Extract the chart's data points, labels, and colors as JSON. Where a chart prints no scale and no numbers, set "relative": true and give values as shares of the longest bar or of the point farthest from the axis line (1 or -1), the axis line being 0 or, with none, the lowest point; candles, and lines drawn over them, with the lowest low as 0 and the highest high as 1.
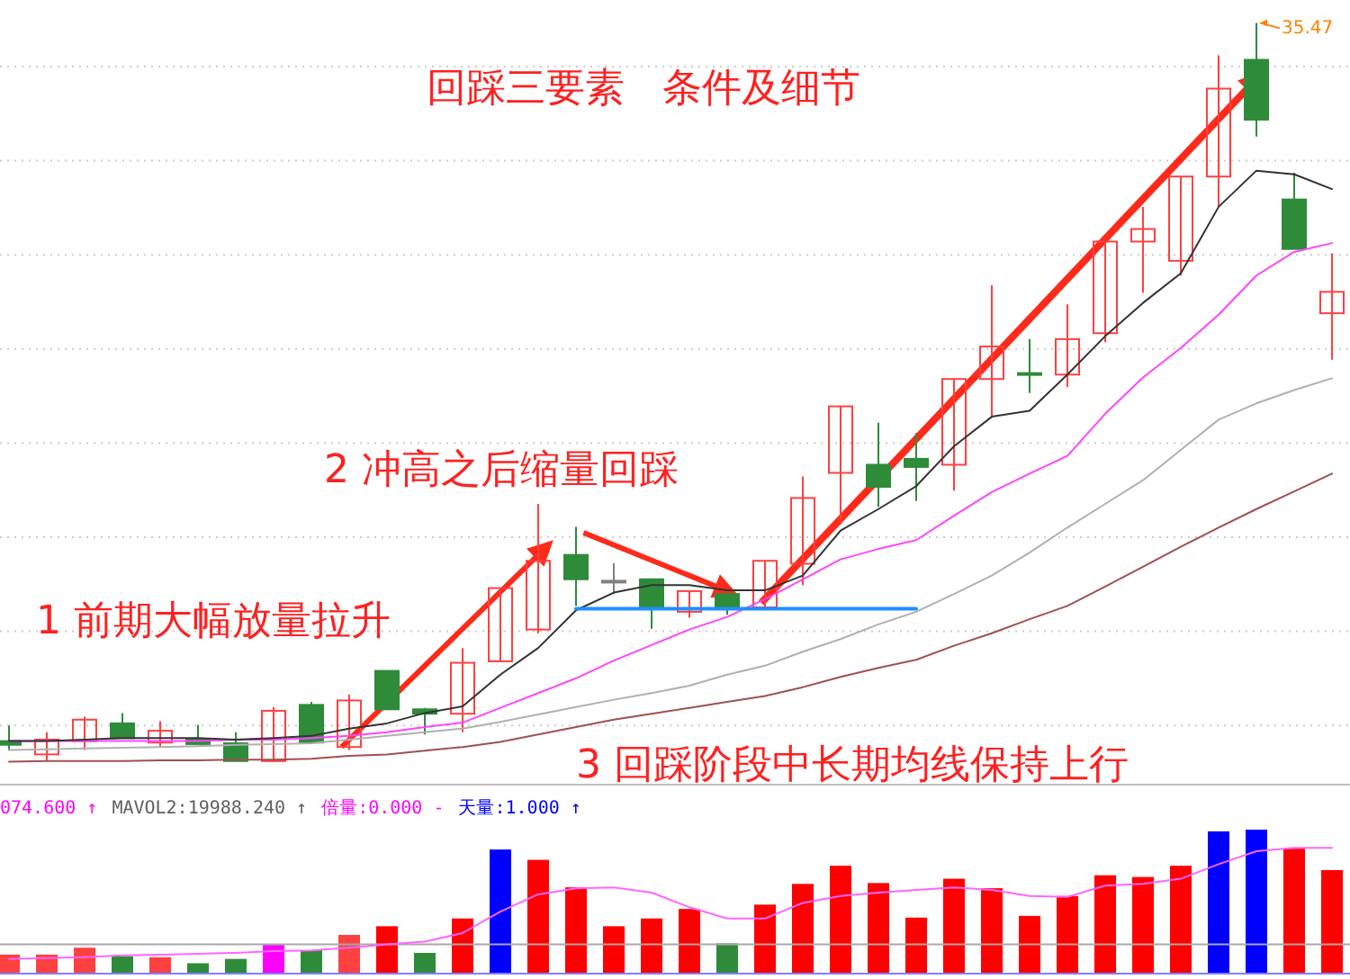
{
  "chart_data": [
    {
      "type": "candlestick",
      "title": "回踩三要素   条件及细节",
      "relative": true,
      "grid": true,
      "categories": [
        null,
        null,
        null,
        null,
        null,
        null,
        null,
        null,
        null,
        null,
        null,
        null,
        null,
        null,
        null,
        null,
        null,
        null,
        null,
        null,
        null,
        null,
        null,
        null,
        null,
        null,
        null,
        null,
        null,
        null,
        null,
        null,
        null,
        null,
        null,
        null
      ],
      "ohlc": [
        [
          0.028,
          0.049,
          0.015,
          0.023
        ],
        [
          0.01,
          0.04,
          0.001,
          0.03
        ],
        [
          0.028,
          0.061,
          0.016,
          0.057
        ],
        [
          0.052,
          0.066,
          0.032,
          0.032
        ],
        [
          0.026,
          0.055,
          0.02,
          0.042
        ],
        [
          0.031,
          0.05,
          0.024,
          0.024
        ],
        [
          0.025,
          0.04,
          0.001,
          0.001
        ],
        [
          0.001,
          0.074,
          0,
          0.069
        ],
        [
          0.077,
          0.081,
          0.024,
          0.026
        ],
        [
          0.02,
          0.091,
          0.016,
          0.083
        ],
        [
          0.123,
          0.123,
          0.071,
          0.071
        ],
        [
          0.071,
          0.073,
          0.037,
          0.065
        ],
        [
          0.065,
          0.154,
          0.04,
          0.134
        ],
        [
          0.136,
          0.235,
          0.136,
          0.235
        ],
        [
          0.179,
          0.349,
          0.174,
          0.272
        ],
        [
          0.28,
          0.318,
          0.211,
          0.247
        ],
        [
          0.245,
          0.269,
          0.227,
          0.245
        ],
        [
          0.247,
          0.247,
          0.18,
          0.207
        ],
        [
          0.203,
          0.231,
          0.195,
          0.231
        ],
        [
          0.227,
          0.227,
          0.199,
          0.209
        ],
        [
          0.209,
          0.272,
          0.209,
          0.272
        ],
        [
          0.268,
          0.386,
          0.239,
          0.357
        ],
        [
          0.391,
          0.481,
          0.321,
          0.481
        ],
        [
          0.402,
          0.459,
          0.345,
          0.372
        ],
        [
          0.41,
          0.445,
          0.353,
          0.399
        ],
        [
          0.402,
          0.518,
          0.367,
          0.518
        ],
        [
          0.518,
          0.645,
          0.467,
          0.562
        ],
        [
          0.526,
          0.572,
          0.499,
          0.526
        ],
        [
          0.524,
          0.619,
          0.507,
          0.572
        ],
        [
          0.58,
          0.704,
          0.568,
          0.704
        ],
        [
          0.704,
          0.751,
          0.635,
          0.721
        ],
        [
          0.678,
          0.792,
          0.658,
          0.792
        ],
        [
          0.792,
          0.956,
          0.751,
          0.911
        ],
        [
          0.95,
          1,
          0.846,
          0.869
        ],
        [
          0.761,
          0.797,
          0.694,
          0.694
        ],
        [
          0.607,
          0.688,
          0.544,
          0.636
        ]
      ],
      "colors": [
        "#2e8b3a",
        "#ff4040",
        "#ff4040",
        "#2e8b3a",
        "#ff4040",
        "#2e8b3a",
        "#2e8b3a",
        "#ff4040",
        "#2e8b3a",
        "#ff4040",
        "#2e8b3a",
        "#2e8b3a",
        "#ff4040",
        "#ff4040",
        "#ff4040",
        "#2e8b3a",
        "#808080",
        "#2e8b3a",
        "#ff4040",
        "#2e8b3a",
        "#ff4040",
        "#ff4040",
        "#ff4040",
        "#2e8b3a",
        "#2e8b3a",
        "#ff4040",
        "#ff4040",
        "#2e8b3a",
        "#ff4040",
        "#ff4040",
        "#ff4040",
        "#ff4040",
        "#ff4040",
        "#2e8b3a",
        "#2e8b3a",
        "#ff4040"
      ],
      "series": [
        {
          "type": "line",
          "color": "#a05050",
          "values": [
            0,
            0.001,
            0.001,
            0.001,
            0.002,
            0.002,
            0.003,
            0.003,
            0.004,
            0.008,
            0.01,
            0.015,
            0.02,
            0.027,
            0.037,
            0.047,
            0.057,
            0.065,
            0.073,
            0.081,
            0.089,
            0.101,
            0.115,
            0.127,
            0.138,
            0.157,
            0.174,
            0.193,
            0.211,
            0.237,
            0.264,
            0.291,
            0.317,
            0.342,
            0.366,
            0.39
          ]
        },
        {
          "type": "line",
          "color": "#b0b0b0",
          "values": [
            0.016,
            0.017,
            0.018,
            0.019,
            0.02,
            0.021,
            0.023,
            0.024,
            0.025,
            0.03,
            0.035,
            0.04,
            0.045,
            0.054,
            0.064,
            0.074,
            0.084,
            0.093,
            0.103,
            0.118,
            0.13,
            0.149,
            0.166,
            0.186,
            0.203,
            0.227,
            0.252,
            0.283,
            0.317,
            0.349,
            0.381,
            0.422,
            0.463,
            0.485,
            0.503,
            0.519
          ]
        },
        {
          "type": "line",
          "color": "#ff44ff",
          "values": [
            0.028,
            0.028,
            0.028,
            0.028,
            0.028,
            0.028,
            0.03,
            0.03,
            0.032,
            0.035,
            0.04,
            0.047,
            0.053,
            0.073,
            0.093,
            0.113,
            0.137,
            0.158,
            0.179,
            0.196,
            0.22,
            0.247,
            0.274,
            0.288,
            0.3,
            0.333,
            0.365,
            0.39,
            0.414,
            0.471,
            0.52,
            0.56,
            0.605,
            0.658,
            0.69,
            0.702
          ]
        },
        {
          "type": "line",
          "color": "#333333",
          "values": [
            0.028,
            0.028,
            0.03,
            0.032,
            0.032,
            0.032,
            0.03,
            0.032,
            0.035,
            0.045,
            0.052,
            0.066,
            0.075,
            0.118,
            0.154,
            0.205,
            0.229,
            0.239,
            0.239,
            0.232,
            0.232,
            0.252,
            0.313,
            0.342,
            0.373,
            0.427,
            0.467,
            0.475,
            0.524,
            0.576,
            0.621,
            0.661,
            0.751,
            0.8,
            0.795,
            0.775
          ]
        },
        {
          "type": "line",
          "color": "#1e90ff",
          "values": [
            null,
            null,
            null,
            null,
            null,
            null,
            null,
            null,
            null,
            null,
            null,
            null,
            null,
            null,
            null,
            0.207,
            0.207,
            0.207,
            0.207,
            0.207,
            0.207,
            0.207,
            0.207,
            0.207,
            0.207,
            null,
            null,
            null,
            null,
            null,
            null,
            null,
            null,
            null,
            null,
            null
          ]
        }
      ],
      "annotations": [
        "2 冲高之后缩量回踩",
        "1 前期大幅放量拉升",
        "3 回踩阶段中长期均线保持上行",
        "35.47"
      ]
    },
    {
      "type": "bar",
      "relative": true,
      "categories": [
        null,
        null,
        null,
        null,
        null,
        null,
        null,
        null,
        null,
        null,
        null,
        null,
        null,
        null,
        null,
        null,
        null,
        null,
        null,
        null,
        null,
        null,
        null,
        null,
        null,
        null,
        null,
        null,
        null,
        null,
        null,
        null,
        null,
        null,
        null,
        null
      ],
      "values": [
        0.132,
        0.132,
        0.18,
        0.12,
        0.114,
        0.072,
        0.102,
        0.204,
        0.162,
        0.269,
        0.329,
        0.144,
        0.383,
        0.862,
        0.79,
        0.599,
        0.329,
        0.383,
        0.449,
        0.21,
        0.479,
        0.623,
        0.749,
        0.629,
        0.389,
        0.659,
        0.593,
        0.401,
        0.539,
        0.683,
        0.671,
        0.749,
        0.988,
        1,
        0.868,
        0.719
      ],
      "colors": [
        "#ff4040",
        "#ff4040",
        "#ff4040",
        "#2e8b3a",
        "#ff4040",
        "#2e8b3a",
        "#2e8b3a",
        "#ff00ff",
        "#2e8b3a",
        "#ff4040",
        "#ff0000",
        "#2e8b3a",
        "#ff0000",
        "#0000ff",
        "#ff0000",
        "#ff0000",
        "#ff0000",
        "#ff0000",
        "#ff0000",
        "#2e8b3a",
        "#ff0000",
        "#ff0000",
        "#ff0000",
        "#ff0000",
        "#ff0000",
        "#ff0000",
        "#ff0000",
        "#ff0000",
        "#ff0000",
        "#ff0000",
        "#ff0000",
        "#ff0000",
        "#0000ff",
        "#0000ff",
        "#ff0000",
        "#ff0000"
      ],
      "annotations": [
        "074.600 ↑",
        "MAVOL2:19988.240 ↑",
        "倍量:0.000 -",
        "天量:1.000 ↑"
      ]
    },
    {
      "type": "line",
      "relative": true,
      "categories": [
        null,
        null,
        null,
        null,
        null,
        null,
        null,
        null,
        null,
        null,
        null,
        null,
        null,
        null,
        null,
        null,
        null,
        null,
        null,
        null,
        null,
        null,
        null,
        null,
        null,
        null,
        null,
        null,
        null,
        null,
        null,
        null,
        null,
        null,
        null,
        null
      ],
      "series": [
        {
          "color": "#ff66ff",
          "values": [
            0.117,
            0.124,
            0.13,
            0.144,
            0.151,
            0.158,
            0.165,
            0.178,
            0.185,
            0.206,
            0.233,
            0.254,
            0.322,
            0.493,
            0.63,
            0.678,
            0.685,
            0.644,
            0.527,
            0.438,
            0.438,
            0.562,
            0.617,
            0.644,
            0.665,
            0.685,
            0.665,
            0.617,
            0.61,
            0.699,
            0.713,
            0.754,
            0.87,
            0.973,
            1,
            1
          ]
        }
      ],
      "ref_lines": [
        {
          "axis": "y",
          "value": 0.233,
          "color": "#a8a8a8"
        }
      ]
    }
  ]
}
